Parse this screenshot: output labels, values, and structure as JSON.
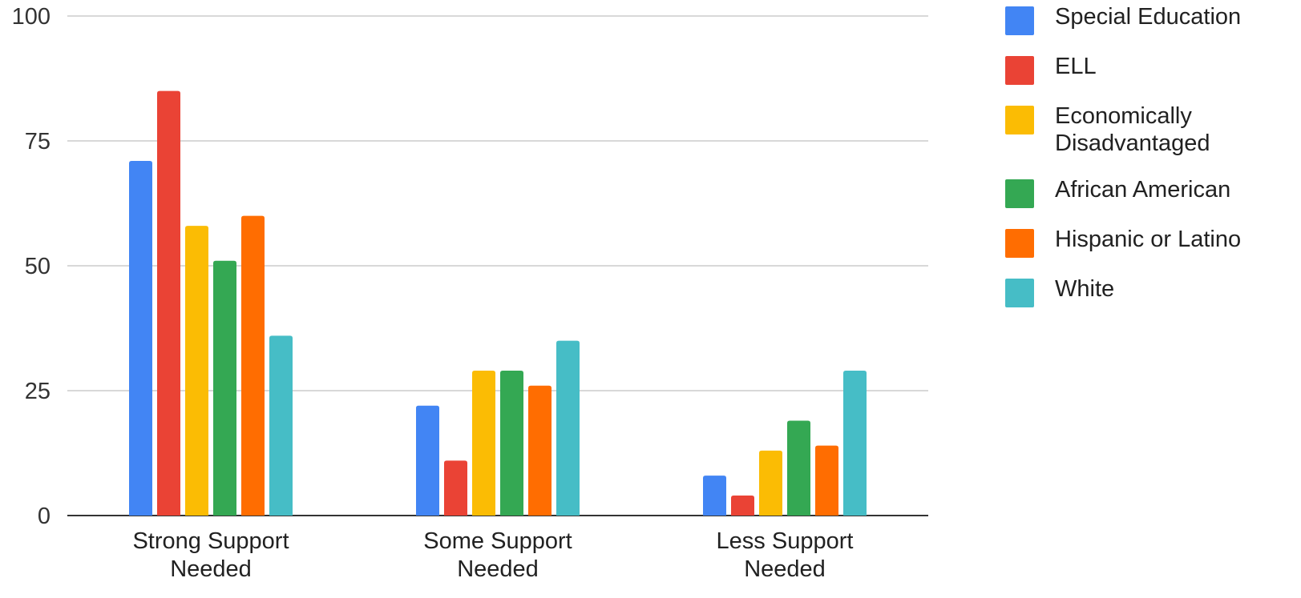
{
  "chart_data": {
    "type": "bar",
    "categories": [
      "Strong Support Needed",
      "Some Support Needed",
      "Less Support Needed"
    ],
    "series": [
      {
        "name": "Special Education",
        "color": "#4285F4",
        "values": [
          71,
          22,
          8
        ]
      },
      {
        "name": "ELL",
        "color": "#EA4335",
        "values": [
          85,
          11,
          4
        ]
      },
      {
        "name": "Economically Disadvantaged",
        "color": "#FBBC04",
        "values": [
          58,
          29,
          13
        ]
      },
      {
        "name": "African American",
        "color": "#34A853",
        "values": [
          51,
          29,
          19
        ]
      },
      {
        "name": "Hispanic or Latino",
        "color": "#FF6D01",
        "values": [
          60,
          26,
          14
        ]
      },
      {
        "name": "White",
        "color": "#46BDC6",
        "values": [
          36,
          35,
          29
        ]
      }
    ],
    "y_ticks": [
      "0",
      "25",
      "50",
      "75",
      "100"
    ],
    "ylim": [
      0,
      100
    ],
    "title": "",
    "xlabel": "",
    "ylabel": "",
    "grid": true,
    "legend_position": "right"
  }
}
